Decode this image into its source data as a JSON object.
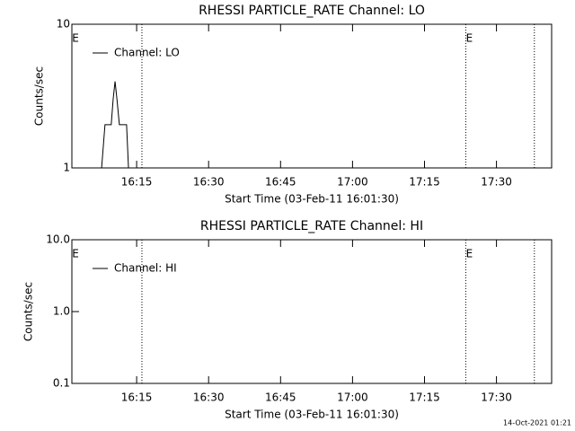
{
  "chart_data": [
    {
      "type": "line",
      "title": "RHESSI PARTICLE_RATE Channel: LO",
      "xlabel": "Start Time (03-Feb-11 16:01:30)",
      "ylabel": "Counts/sec",
      "ylog": true,
      "ylim": [
        1,
        10
      ],
      "yticks": [
        1,
        10
      ],
      "xlim": [
        961.5,
        1061.5
      ],
      "xticks": [
        {
          "value": 975,
          "label": "16:15"
        },
        {
          "value": 990,
          "label": "16:30"
        },
        {
          "value": 1005,
          "label": "16:45"
        },
        {
          "value": 1020,
          "label": "17:00"
        },
        {
          "value": 1035,
          "label": "17:15"
        },
        {
          "value": 1050,
          "label": "17:30"
        }
      ],
      "vlines": [
        976.1,
        1043.6,
        1057.9
      ],
      "annotations": [
        {
          "text": "E",
          "x": 961.5
        },
        {
          "text": "E",
          "x": 1043.6
        }
      ],
      "series": [
        {
          "name": "Channel: LO",
          "color": "#000000",
          "x": [
            967.7,
            968.4,
            969.7,
            970.1,
            970.5,
            970.9,
            971.4,
            972.9,
            973.3
          ],
          "values": [
            1,
            2,
            2,
            3,
            4,
            3,
            2,
            2,
            1
          ]
        }
      ]
    },
    {
      "type": "line",
      "title": "RHESSI PARTICLE_RATE Channel: HI",
      "xlabel": "Start Time (03-Feb-11 16:01:30)",
      "ylabel": "Counts/sec",
      "ylog": true,
      "ylim": [
        0.1,
        10
      ],
      "yticks": [
        0.1,
        {
          "value": 1,
          "label": "1.0"
        },
        {
          "value": 10,
          "label": "10.0"
        }
      ],
      "xlim": [
        961.5,
        1061.5
      ],
      "xticks": [
        {
          "value": 975,
          "label": "16:15"
        },
        {
          "value": 990,
          "label": "16:30"
        },
        {
          "value": 1005,
          "label": "16:45"
        },
        {
          "value": 1020,
          "label": "17:00"
        },
        {
          "value": 1035,
          "label": "17:15"
        },
        {
          "value": 1050,
          "label": "17:30"
        }
      ],
      "vlines": [
        976.1,
        1043.6,
        1057.9
      ],
      "annotations": [
        {
          "text": "E",
          "x": 961.5
        },
        {
          "text": "E",
          "x": 1043.6
        }
      ],
      "series": [
        {
          "name": "Channel: HI",
          "color": "#000000",
          "x": [],
          "values": []
        }
      ]
    }
  ],
  "footer": "14-Oct-2021 01:21"
}
